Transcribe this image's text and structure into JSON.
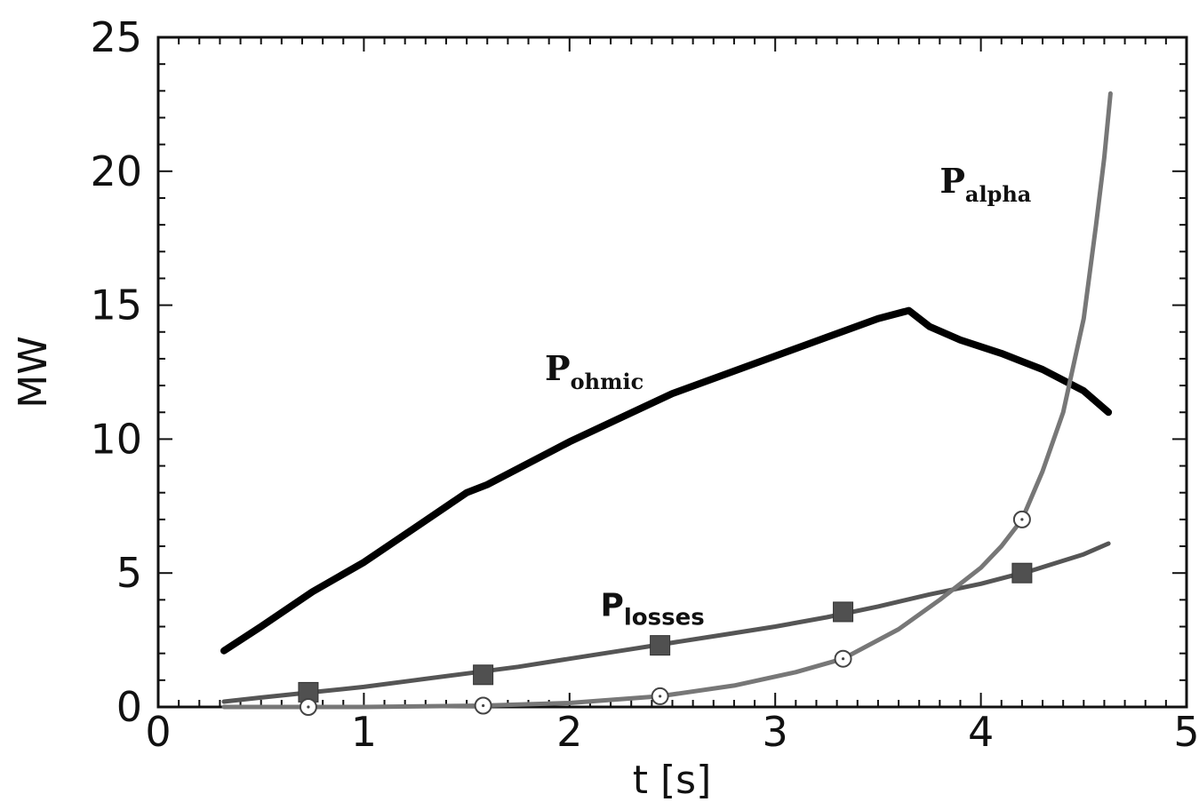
{
  "chart_data": {
    "type": "line",
    "title": "",
    "xlabel": "t [s]",
    "ylabel": "MW",
    "xlim": [
      0,
      5
    ],
    "ylim": [
      0,
      25
    ],
    "x_ticks": [
      0,
      1,
      2,
      3,
      4,
      5
    ],
    "y_ticks": [
      0,
      5,
      10,
      15,
      20,
      25
    ],
    "x_tick_labels": [
      "0",
      "1",
      "2",
      "3",
      "4",
      "5"
    ],
    "y_tick_labels": [
      "0",
      "5",
      "10",
      "15",
      "20",
      "25"
    ],
    "grid": false,
    "series": [
      {
        "name": "P_ohmic",
        "label_main": "P",
        "label_sub": "ohmic",
        "color": "#000000",
        "x": [
          0.32,
          0.5,
          0.75,
          1.0,
          1.25,
          1.5,
          1.6,
          1.75,
          2.0,
          2.25,
          2.5,
          2.75,
          3.0,
          3.25,
          3.5,
          3.65,
          3.75,
          3.9,
          4.1,
          4.3,
          4.5,
          4.62
        ],
        "y": [
          2.1,
          3.0,
          4.3,
          5.4,
          6.7,
          8.0,
          8.3,
          8.9,
          9.9,
          10.8,
          11.7,
          12.4,
          13.1,
          13.8,
          14.5,
          14.8,
          14.2,
          13.7,
          13.2,
          12.6,
          11.8,
          11.0
        ]
      },
      {
        "name": "P_losses",
        "label_main": "P",
        "label_sub": "losses",
        "color": "#555555",
        "marker": "square",
        "x": [
          0.32,
          0.5,
          0.75,
          1.0,
          1.25,
          1.5,
          1.75,
          2.0,
          2.25,
          2.5,
          2.75,
          3.0,
          3.25,
          3.5,
          3.75,
          4.0,
          4.25,
          4.5,
          4.62
        ],
        "y": [
          0.2,
          0.35,
          0.55,
          0.75,
          1.0,
          1.25,
          1.5,
          1.8,
          2.1,
          2.4,
          2.7,
          3.0,
          3.35,
          3.75,
          4.2,
          4.6,
          5.1,
          5.7,
          6.1
        ],
        "marker_x": [
          0.73,
          1.58,
          2.44,
          3.33,
          4.2
        ],
        "marker_y": [
          0.55,
          1.2,
          2.3,
          3.55,
          5.0
        ]
      },
      {
        "name": "P_alpha",
        "label_main": "P",
        "label_sub": "alpha",
        "color": "#777777",
        "marker": "circle",
        "x": [
          0.32,
          0.73,
          1.0,
          1.58,
          2.0,
          2.44,
          2.8,
          3.1,
          3.33,
          3.6,
          3.8,
          4.0,
          4.1,
          4.2,
          4.3,
          4.4,
          4.5,
          4.56,
          4.6,
          4.63
        ],
        "y": [
          0.0,
          0.0,
          0.0,
          0.05,
          0.15,
          0.4,
          0.8,
          1.3,
          1.8,
          2.9,
          4.0,
          5.2,
          6.0,
          7.0,
          8.8,
          11.0,
          14.5,
          18.0,
          20.5,
          22.9
        ],
        "marker_x": [
          0.73,
          1.58,
          2.44,
          3.33,
          4.2
        ],
        "marker_y": [
          0.0,
          0.05,
          0.4,
          1.8,
          7.0
        ]
      }
    ],
    "annotations": [
      {
        "series": "P_ohmic",
        "text_main": "P",
        "text_sub": "ohmic",
        "x": 1.88,
        "y": 12.2
      },
      {
        "series": "P_losses",
        "text_main": "P",
        "text_sub": "losses",
        "x": 2.15,
        "y": 3.4
      },
      {
        "series": "P_alpha",
        "text_main": "P",
        "text_sub": "alpha",
        "x": 3.8,
        "y": 19.2
      }
    ]
  }
}
